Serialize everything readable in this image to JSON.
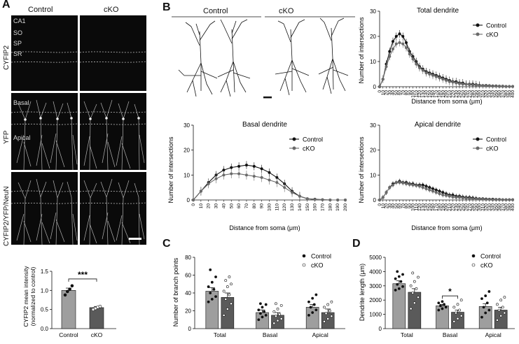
{
  "panels": {
    "A": {
      "letter": "A",
      "col_headers": [
        "Control",
        "cKO"
      ],
      "row_labels": [
        "CYFIP2",
        "YFP",
        "CYFIP2/YFP/NeuN"
      ],
      "layer_labels": [
        "CA1",
        "SO",
        "SP",
        "SR"
      ],
      "yfp_labels": [
        "Basal",
        "Apical"
      ]
    },
    "B": {
      "letter": "B",
      "col_headers": [
        "Control",
        "cKO"
      ]
    },
    "C": {
      "letter": "C"
    },
    "D": {
      "letter": "D"
    }
  },
  "chart_data": [
    {
      "id": "A-bar",
      "type": "bar",
      "ylabel": "CYFIP2 mean intensity\n(normalized to control)",
      "categories": [
        "Control",
        "cKO"
      ],
      "values": [
        1.0,
        0.55
      ],
      "errors": [
        0.06,
        0.03
      ],
      "points": [
        [
          0.88,
          0.97,
          1.03,
          1.12
        ],
        [
          0.5,
          0.53,
          0.56,
          0.58
        ]
      ],
      "ylim": [
        0,
        1.5
      ],
      "yticks": [
        "0.0",
        "0.5",
        "1.0",
        "1.5"
      ],
      "significance": "***",
      "colors": [
        "#9e9e9e",
        "#5a5a5a"
      ]
    },
    {
      "id": "B-total",
      "type": "line",
      "title": "Total dendrite",
      "xlabel": "Distance from soma (μm)",
      "ylabel": "Number of intersections",
      "ylim": [
        0,
        30
      ],
      "yticks": [
        "0",
        "10",
        "20",
        "30"
      ],
      "x": [
        0,
        10,
        20,
        30,
        40,
        50,
        60,
        70,
        80,
        90,
        100,
        110,
        120,
        130,
        140,
        150,
        160,
        170,
        180,
        190,
        200,
        210,
        220,
        230,
        240,
        250,
        260,
        270,
        280,
        290,
        300,
        310,
        320,
        330,
        340,
        350,
        360,
        370,
        380,
        390,
        400
      ],
      "xtick_labels": [
        "0",
        "10",
        "20",
        "30",
        "40",
        "50",
        "60",
        "70",
        "80",
        "90",
        "100",
        "110",
        "120",
        "130",
        "140",
        "150",
        "160",
        "170",
        "180",
        "190",
        "200",
        "210",
        "220",
        "230",
        "240",
        "250",
        "260",
        "270",
        "280",
        "290",
        "300",
        "310",
        "320",
        "330",
        "340",
        "350",
        "360",
        "370",
        "380",
        "390",
        "400"
      ],
      "legend": "top-right",
      "series": [
        {
          "name": "Control",
          "color": "#111111",
          "values": [
            0,
            3,
            9,
            14,
            18,
            20,
            21,
            20,
            17.5,
            14,
            12,
            10,
            8,
            7,
            6,
            5.5,
            5,
            4.5,
            4,
            3.5,
            3,
            2.5,
            2,
            2,
            1.5,
            1.5,
            1,
            1,
            1,
            0.8,
            0.6,
            0.5,
            0.5,
            0.4,
            0.3,
            0.3,
            0.2,
            0.2,
            0.1,
            0.1,
            0.1
          ],
          "error": 1.5
        },
        {
          "name": "cKO",
          "color": "#6a6a6a",
          "values": [
            0,
            3,
            8,
            12,
            15,
            17,
            17.5,
            17,
            15.5,
            13,
            11,
            9,
            7.5,
            6.5,
            5.5,
            5,
            4.5,
            4,
            3.5,
            3,
            2.5,
            2,
            1.8,
            1.5,
            1.2,
            1,
            1,
            0.8,
            0.7,
            0.6,
            0.5,
            0.4,
            0.3,
            0.3,
            0.2,
            0.2,
            0.1,
            0.1,
            0.1,
            0.1,
            0.1
          ],
          "error": 1.5
        }
      ]
    },
    {
      "id": "B-basal",
      "type": "line",
      "title": "Basal dendrite",
      "xlabel": "Distance from soma (μm)",
      "ylabel": "Number of intersections",
      "ylim": [
        0,
        30
      ],
      "yticks": [
        "0",
        "10",
        "20",
        "30"
      ],
      "x": [
        0,
        10,
        20,
        30,
        40,
        50,
        60,
        70,
        80,
        90,
        100,
        110,
        120,
        130,
        140,
        150,
        160,
        170,
        180,
        190,
        200
      ],
      "xtick_labels": [
        "0",
        "10",
        "20",
        "30",
        "40",
        "50",
        "60",
        "70",
        "80",
        "90",
        "100",
        "110",
        "120",
        "130",
        "140",
        "150",
        "160",
        "170",
        "180",
        "190",
        "200"
      ],
      "legend": "top-right",
      "series": [
        {
          "name": "Control",
          "color": "#111111",
          "values": [
            0,
            3.5,
            7,
            10,
            12,
            13,
            13.5,
            14,
            13.5,
            12.5,
            11,
            9,
            6.5,
            3.5,
            1.5,
            0.5,
            0.3,
            0.1,
            0,
            0,
            0
          ],
          "error": 1.6
        },
        {
          "name": "cKO",
          "color": "#6a6a6a",
          "values": [
            0,
            3.5,
            6.5,
            8.5,
            10,
            10.5,
            10.5,
            10,
            9.5,
            9,
            8,
            7,
            5,
            3,
            1.5,
            0.5,
            0.2,
            0.1,
            0,
            0,
            0
          ],
          "error": 1.8
        }
      ]
    },
    {
      "id": "B-apical",
      "type": "line",
      "title": "Apical dendrite",
      "xlabel": "Distance from soma (μm)",
      "ylabel": "Number of intersections",
      "ylim": [
        0,
        30
      ],
      "yticks": [
        "0",
        "10",
        "20",
        "30"
      ],
      "x": [
        0,
        10,
        20,
        30,
        40,
        50,
        60,
        70,
        80,
        90,
        100,
        110,
        120,
        130,
        140,
        150,
        160,
        170,
        180,
        190,
        200,
        210,
        220,
        230,
        240,
        250,
        260,
        270,
        280,
        290,
        300,
        310,
        320,
        330,
        340,
        350,
        360,
        370,
        380,
        390,
        400
      ],
      "xtick_labels": [
        "0",
        "10",
        "20",
        "30",
        "40",
        "50",
        "60",
        "70",
        "80",
        "90",
        "100",
        "110",
        "120",
        "130",
        "140",
        "150",
        "160",
        "170",
        "180",
        "190",
        "200",
        "210",
        "220",
        "230",
        "240",
        "250",
        "260",
        "270",
        "280",
        "290",
        "300",
        "310",
        "320",
        "330",
        "340",
        "350",
        "360",
        "370",
        "380",
        "390",
        "400"
      ],
      "legend": "top-right",
      "series": [
        {
          "name": "Control",
          "color": "#111111",
          "values": [
            0,
            1,
            3,
            5,
            6.5,
            7,
            7.5,
            7,
            7,
            6.5,
            6.5,
            6,
            6,
            6,
            5.5,
            5,
            4.5,
            4,
            3.5,
            3,
            2.5,
            2,
            2,
            1.5,
            1.5,
            1.2,
            1,
            1,
            0.8,
            0.6,
            0.5,
            0.5,
            0.4,
            0.3,
            0.3,
            0.2,
            0.2,
            0.1,
            0.1,
            0.1,
            0.1
          ],
          "error": 1.0
        },
        {
          "name": "cKO",
          "color": "#6a6a6a",
          "values": [
            0,
            1,
            3,
            5,
            6,
            7,
            7,
            6.8,
            6.5,
            6.2,
            6,
            5.8,
            5.5,
            5,
            4.5,
            4,
            3.5,
            3,
            2.5,
            2,
            1.8,
            1.5,
            1.2,
            1,
            1,
            0.8,
            0.7,
            0.6,
            0.5,
            0.4,
            0.3,
            0.3,
            0.2,
            0.2,
            0.1,
            0.1,
            0.1,
            0.1,
            0.1,
            0.1,
            0.1
          ],
          "error": 1.0
        }
      ]
    },
    {
      "id": "C",
      "type": "bar",
      "ylabel": "Number of branch points",
      "categories": [
        "Total",
        "Basal",
        "Apical"
      ],
      "ylim": [
        0,
        80
      ],
      "yticks": [
        "0",
        "20",
        "40",
        "60",
        "80"
      ],
      "legend": "top-right",
      "series": [
        {
          "name": "Control",
          "color": "#9e9e9e",
          "values": [
            42,
            18,
            24
          ],
          "errors": [
            4,
            3,
            3
          ],
          "points": [
            [
              30,
              33,
              36,
              40,
              44,
              47,
              52,
              58,
              66
            ],
            [
              10,
              13,
              15,
              17,
              19,
              21,
              24,
              27,
              28
            ],
            [
              15,
              18,
              21,
              24,
              27,
              30,
              34,
              38
            ]
          ]
        },
        {
          "name": "cKO",
          "color": "#5a5a5a",
          "values": [
            35,
            15,
            18
          ],
          "errors": [
            5,
            3,
            4
          ],
          "points": [
            [
              15,
              22,
              28,
              33,
              38,
              42,
              47,
              50,
              54,
              58
            ],
            [
              6,
              9,
              11,
              14,
              16,
              19,
              22,
              26,
              28
            ],
            [
              8,
              11,
              14,
              17,
              20,
              24,
              27,
              30
            ]
          ]
        }
      ]
    },
    {
      "id": "D",
      "type": "bar",
      "ylabel": "Dendrite length (μm)",
      "categories": [
        "Total",
        "Basal",
        "Apical"
      ],
      "ylim": [
        0,
        5000
      ],
      "yticks": [
        "0",
        "1000",
        "2000",
        "3000",
        "4000",
        "5000"
      ],
      "legend": "top-right",
      "significance": {
        "category": "Basal",
        "label": "*"
      },
      "series": [
        {
          "name": "Control",
          "color": "#9e9e9e",
          "values": [
            3150,
            1600,
            1550
          ],
          "errors": [
            200,
            100,
            200
          ],
          "points": [
            [
              2700,
              2800,
              2950,
              3100,
              3300,
              3500,
              3650,
              3800,
              4000
            ],
            [
              1300,
              1400,
              1500,
              1600,
              1700,
              1800,
              1900
            ],
            [
              800,
              1100,
              1300,
              1500,
              1800,
              2100,
              2300,
              2600
            ]
          ]
        },
        {
          "name": "cKO",
          "color": "#5a5a5a",
          "values": [
            2550,
            1150,
            1300
          ],
          "errors": [
            250,
            150,
            200
          ],
          "points": [
            [
              1400,
              1800,
              2200,
              2500,
              2800,
              3000,
              3300,
              3600,
              3900
            ],
            [
              500,
              700,
              900,
              1100,
              1300,
              1500,
              1700,
              2000
            ],
            [
              600,
              900,
              1100,
              1300,
              1500,
              1700,
              2000,
              2200
            ]
          ]
        }
      ]
    }
  ]
}
